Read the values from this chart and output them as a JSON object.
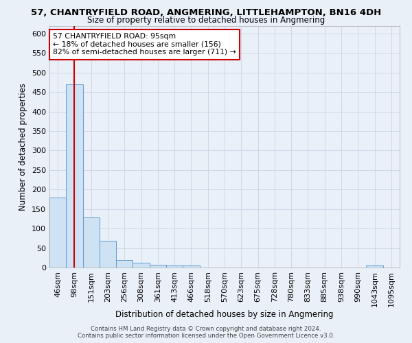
{
  "title": "57, CHANTRYFIELD ROAD, ANGMERING, LITTLEHAMPTON, BN16 4DH",
  "subtitle": "Size of property relative to detached houses in Angmering",
  "xlabel": "Distribution of detached houses by size in Angmering",
  "ylabel": "Number of detached properties",
  "bin_labels": [
    "46sqm",
    "98sqm",
    "151sqm",
    "203sqm",
    "256sqm",
    "308sqm",
    "361sqm",
    "413sqm",
    "466sqm",
    "518sqm",
    "570sqm",
    "623sqm",
    "675sqm",
    "728sqm",
    "780sqm",
    "833sqm",
    "885sqm",
    "938sqm",
    "990sqm",
    "1043sqm",
    "1095sqm"
  ],
  "bin_values": [
    180,
    470,
    128,
    68,
    20,
    12,
    7,
    5,
    5,
    0,
    0,
    0,
    0,
    0,
    0,
    0,
    0,
    0,
    0,
    6,
    0
  ],
  "bar_color": "#cfe2f3",
  "bar_edge_color": "#5b9bd5",
  "grid_color": "#d0d8e8",
  "background_color": "#eaf0f8",
  "vline_x_idx": 1,
  "vline_color": "#cc0000",
  "annotation_text": "57 CHANTRYFIELD ROAD: 95sqm\n← 18% of detached houses are smaller (156)\n82% of semi-detached houses are larger (711) →",
  "annotation_box_color": "white",
  "annotation_box_edge_color": "#cc0000",
  "ylim": [
    0,
    620
  ],
  "yticks": [
    0,
    50,
    100,
    150,
    200,
    250,
    300,
    350,
    400,
    450,
    500,
    550,
    600
  ],
  "footnote1": "Contains HM Land Registry data © Crown copyright and database right 2024.",
  "footnote2": "Contains public sector information licensed under the Open Government Licence v3.0."
}
